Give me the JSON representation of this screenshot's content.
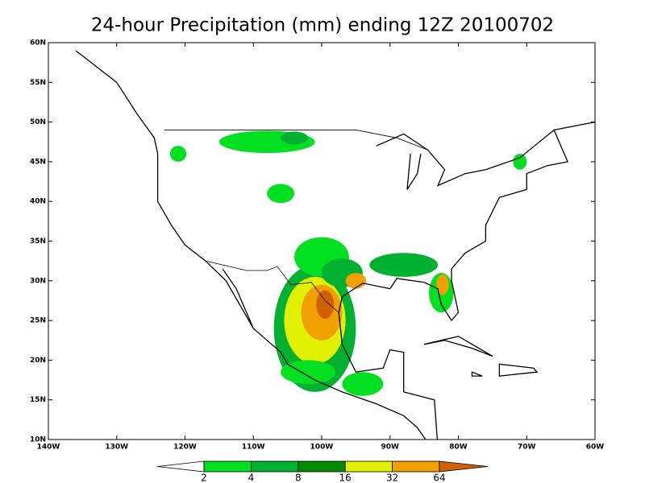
{
  "map": {
    "title": "24-hour Precipitation (mm) ending 12Z 20100702",
    "xlim": [
      -140,
      -60
    ],
    "ylim": [
      10,
      60
    ],
    "xticks": [
      {
        "value": -140,
        "label": "140W"
      },
      {
        "value": -130,
        "label": "130W"
      },
      {
        "value": -120,
        "label": "120W"
      },
      {
        "value": -110,
        "label": "110W"
      },
      {
        "value": -100,
        "label": "100W"
      },
      {
        "value": -90,
        "label": "90W"
      },
      {
        "value": -80,
        "label": "80W"
      },
      {
        "value": -70,
        "label": "70W"
      },
      {
        "value": -60,
        "label": "60W"
      }
    ],
    "yticks": [
      {
        "value": 10,
        "label": "10N"
      },
      {
        "value": 15,
        "label": "15N"
      },
      {
        "value": 20,
        "label": "20N"
      },
      {
        "value": 25,
        "label": "25N"
      },
      {
        "value": 30,
        "label": "30N"
      },
      {
        "value": 35,
        "label": "35N"
      },
      {
        "value": 40,
        "label": "40N"
      },
      {
        "value": 45,
        "label": "45N"
      },
      {
        "value": 50,
        "label": "50N"
      },
      {
        "value": 55,
        "label": "55N"
      },
      {
        "value": 60,
        "label": "60N"
      }
    ],
    "colorbar": {
      "levels": [
        2,
        4,
        8,
        16,
        32,
        64
      ],
      "colors": [
        "#ffffff",
        "#00e020",
        "#00b030",
        "#008a00",
        "#e0f000",
        "#f0a000",
        "#d06000"
      ]
    }
  }
}
